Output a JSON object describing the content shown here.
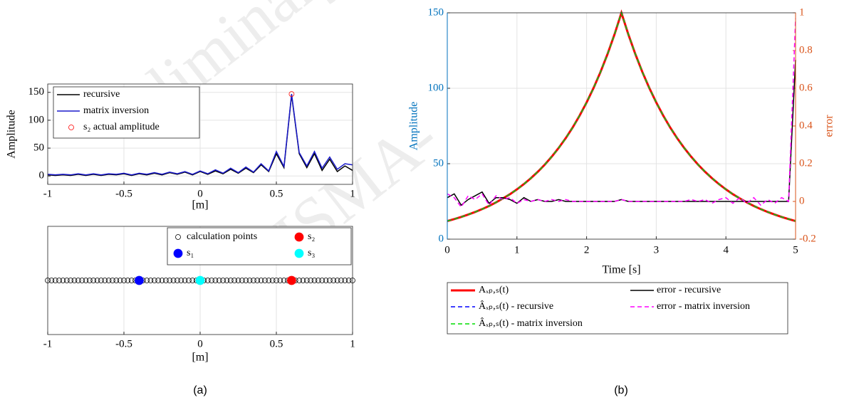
{
  "watermark": [
    "Preliminary",
    "ISMA-"
  ],
  "chart_data": [
    {
      "type": "line",
      "ylabel": "Amplitude",
      "xlabel": "[m]",
      "x": [
        -1,
        -0.95,
        -0.9,
        -0.85,
        -0.8,
        -0.75,
        -0.7,
        -0.65,
        -0.6,
        -0.55,
        -0.5,
        -0.45,
        -0.4,
        -0.35,
        -0.3,
        -0.25,
        -0.2,
        -0.15,
        -0.1,
        -0.05,
        0,
        0.05,
        0.1,
        0.15,
        0.2,
        0.25,
        0.3,
        0.35,
        0.4,
        0.45,
        0.5,
        0.55,
        0.6,
        0.65,
        0.7,
        0.75,
        0.8,
        0.85,
        0.9,
        0.95,
        1
      ],
      "xlim": [
        -1,
        1
      ],
      "xticks": [
        -1,
        -0.5,
        0,
        0.5,
        1
      ],
      "ylim": [
        -15,
        165
      ],
      "yticks": [
        0,
        50,
        100,
        150
      ],
      "grid": true,
      "legend": "upper left",
      "series": [
        {
          "name": "recursive",
          "color": "#000000",
          "values": [
            2,
            1,
            2,
            1,
            3,
            1,
            3,
            1,
            3,
            2,
            4,
            1,
            4,
            2,
            5,
            2,
            6,
            3,
            7,
            2,
            8,
            3,
            9,
            4,
            12,
            5,
            14,
            6,
            20,
            8,
            40,
            15,
            145,
            40,
            15,
            40,
            10,
            30,
            8,
            18,
            10
          ]
        },
        {
          "name": "matrix inversion",
          "color": "#1a1acc",
          "values": [
            3,
            2,
            3,
            2,
            4,
            2,
            4,
            2,
            4,
            3,
            5,
            2,
            5,
            3,
            6,
            3,
            7,
            4,
            8,
            3,
            9,
            4,
            11,
            5,
            14,
            6,
            16,
            7,
            22,
            9,
            44,
            17,
            147,
            42,
            18,
            44,
            14,
            34,
            12,
            22,
            20
          ]
        },
        {
          "name": "s₂ actual amplitude",
          "color": "#ff0000",
          "marker": "circle",
          "x": [
            0.6
          ],
          "values": [
            147
          ]
        }
      ]
    },
    {
      "type": "scatter",
      "xlabel": "[m]",
      "xlim": [
        -1,
        1
      ],
      "xticks": [
        -1,
        -0.5,
        0,
        0.5,
        1
      ],
      "ylim": [
        -1,
        1
      ],
      "grid": true,
      "legend": "upper right",
      "caption": "(a)",
      "series": [
        {
          "name": "calculation points",
          "color": "#000000",
          "filled": false,
          "x": [
            -1,
            -0.975,
            -0.95,
            -0.925,
            -0.9,
            -0.875,
            -0.85,
            -0.825,
            -0.8,
            -0.775,
            -0.75,
            -0.725,
            -0.7,
            -0.675,
            -0.65,
            -0.625,
            -0.6,
            -0.575,
            -0.55,
            -0.525,
            -0.5,
            -0.475,
            -0.45,
            -0.425,
            -0.4,
            -0.375,
            -0.35,
            -0.325,
            -0.3,
            -0.275,
            -0.25,
            -0.225,
            -0.2,
            -0.175,
            -0.15,
            -0.125,
            -0.1,
            -0.075,
            -0.05,
            -0.025,
            0,
            0.025,
            0.05,
            0.075,
            0.1,
            0.125,
            0.15,
            0.175,
            0.2,
            0.225,
            0.25,
            0.275,
            0.3,
            0.325,
            0.35,
            0.375,
            0.4,
            0.425,
            0.45,
            0.475,
            0.5,
            0.525,
            0.55,
            0.575,
            0.6,
            0.625,
            0.65,
            0.675,
            0.7,
            0.725,
            0.75,
            0.775,
            0.8,
            0.825,
            0.85,
            0.875,
            0.9,
            0.925,
            0.95,
            0.975,
            1
          ],
          "values": [
            0,
            0,
            0,
            0,
            0,
            0,
            0,
            0,
            0,
            0,
            0,
            0,
            0,
            0,
            0,
            0,
            0,
            0,
            0,
            0,
            0,
            0,
            0,
            0,
            0,
            0,
            0,
            0,
            0,
            0,
            0,
            0,
            0,
            0,
            0,
            0,
            0,
            0,
            0,
            0,
            0,
            0,
            0,
            0,
            0,
            0,
            0,
            0,
            0,
            0,
            0,
            0,
            0,
            0,
            0,
            0,
            0,
            0,
            0,
            0,
            0,
            0,
            0,
            0,
            0,
            0,
            0,
            0,
            0,
            0,
            0,
            0,
            0,
            0,
            0,
            0,
            0,
            0,
            0,
            0,
            0
          ]
        },
        {
          "name": "s₁",
          "color": "#0000ff",
          "filled": true,
          "x": [
            -0.4
          ],
          "values": [
            0
          ]
        },
        {
          "name": "s₂",
          "color": "#ff0000",
          "filled": true,
          "x": [
            0.6
          ],
          "values": [
            0
          ]
        },
        {
          "name": "s₃",
          "color": "#00ffff",
          "filled": true,
          "x": [
            0
          ],
          "values": [
            0
          ]
        }
      ]
    },
    {
      "type": "line",
      "xlabel": "Time [s]",
      "ylabel": "Amplitude",
      "y2label": "error",
      "caption": "(b)",
      "ycolor": "#0072bd",
      "y2color": "#d95319",
      "x": [
        0,
        0.1,
        0.2,
        0.3,
        0.4,
        0.5,
        0.6,
        0.7,
        0.8,
        0.9,
        1,
        1.1,
        1.2,
        1.3,
        1.4,
        1.5,
        1.6,
        1.7,
        1.8,
        1.9,
        2,
        2.1,
        2.2,
        2.3,
        2.4,
        2.5,
        2.6,
        2.7,
        2.8,
        2.9,
        3,
        3.1,
        3.2,
        3.3,
        3.4,
        3.5,
        3.6,
        3.7,
        3.8,
        3.9,
        4,
        4.1,
        4.2,
        4.3,
        4.4,
        4.5,
        4.6,
        4.7,
        4.8,
        4.9,
        5
      ],
      "xlim": [
        0,
        5
      ],
      "xticks": [
        0,
        1,
        2,
        3,
        4,
        5
      ],
      "ylim": [
        0,
        150
      ],
      "yticks": [
        0,
        50,
        100,
        150
      ],
      "y2lim": [
        -0.2,
        1
      ],
      "y2ticks": [
        -0.2,
        0,
        0.2,
        0.4,
        0.6,
        0.8,
        1
      ],
      "grid": true,
      "legend": "below",
      "series": [
        {
          "name": "Aₓₚ,ₛ(t)",
          "color": "#ff0000",
          "width": 3,
          "values": [
            12,
            13.3,
            14.7,
            16.3,
            18,
            19.9,
            22,
            24.4,
            27,
            29.8,
            33,
            36.5,
            40.4,
            44.7,
            49.4,
            54.7,
            60.5,
            66.9,
            74,
            81.9,
            90.6,
            100.2,
            110.8,
            122.6,
            135.6,
            150,
            135.6,
            122.6,
            110.8,
            100.2,
            90.6,
            81.9,
            74,
            66.9,
            60.5,
            54.7,
            49.4,
            44.7,
            40.4,
            36.5,
            33,
            29.8,
            27,
            24.4,
            22,
            19.9,
            18,
            16.3,
            14.7,
            13.3,
            12
          ]
        },
        {
          "name": "Âₓₚ,ₛ(t) - recursive",
          "color": "#0000ff",
          "dash": true,
          "values": [
            12,
            13.3,
            14.7,
            16.3,
            18,
            19.9,
            22,
            24.4,
            27,
            29.8,
            33,
            36.5,
            40.4,
            44.7,
            49.4,
            54.7,
            60.5,
            66.9,
            74,
            81.9,
            90.6,
            100.2,
            110.8,
            122.6,
            135.6,
            150,
            135.6,
            122.6,
            110.8,
            100.2,
            90.6,
            81.9,
            74,
            66.9,
            60.5,
            54.7,
            49.4,
            44.7,
            40.4,
            36.5,
            33,
            29.8,
            27,
            24.4,
            22,
            19.9,
            18,
            16.3,
            14.7,
            13.3,
            12
          ]
        },
        {
          "name": "Âₓₚ,ₛ(t) - matrix inversion",
          "color": "#00dd00",
          "dash": true,
          "values": [
            12,
            13.3,
            14.7,
            16.3,
            18,
            19.9,
            22,
            24.4,
            27,
            29.8,
            33,
            36.5,
            40.4,
            44.7,
            49.4,
            54.7,
            60.5,
            66.9,
            74,
            81.9,
            90.6,
            100.2,
            110.8,
            122.6,
            135.6,
            150,
            135.6,
            122.6,
            110.8,
            100.2,
            90.6,
            81.9,
            74,
            66.9,
            60.5,
            54.7,
            49.4,
            44.7,
            40.4,
            36.5,
            33,
            29.8,
            27,
            24.4,
            22,
            19.9,
            18,
            16.3,
            14.7,
            13.3,
            12
          ]
        },
        {
          "name": "error - recursive",
          "color": "#000000",
          "axis": "y2",
          "values": [
            0.02,
            0.04,
            -0.02,
            0.01,
            0.03,
            0.05,
            -0.01,
            0.02,
            0.02,
            0.01,
            -0.01,
            0.02,
            0,
            0.01,
            0,
            0,
            0.01,
            0,
            0,
            0,
            0,
            0,
            0,
            0,
            0,
            0.01,
            0,
            0,
            0,
            0,
            0,
            0,
            0,
            0,
            0,
            0,
            0,
            0,
            0,
            0,
            0,
            0,
            0,
            0,
            0,
            0,
            0,
            0,
            0,
            0,
            0.75
          ]
        },
        {
          "name": "error - matrix inversion",
          "color": "#ff00ff",
          "dash": true,
          "axis": "y2",
          "values": [
            0.04,
            0.02,
            -0.03,
            0.03,
            0.01,
            0.04,
            -0.02,
            0.03,
            0.01,
            0.02,
            -0.01,
            0.01,
            0,
            0.01,
            0,
            0.01,
            0,
            0.01,
            0,
            0,
            0,
            0,
            0,
            0,
            0,
            0.01,
            0,
            0,
            0,
            0,
            0,
            0,
            0,
            0,
            0,
            0.01,
            0,
            0.01,
            -0.01,
            0.01,
            0.02,
            -0.01,
            0.02,
            -0.01,
            0.02,
            -0.02,
            0.01,
            -0.01,
            0.02,
            0,
            0.97
          ]
        }
      ]
    }
  ]
}
